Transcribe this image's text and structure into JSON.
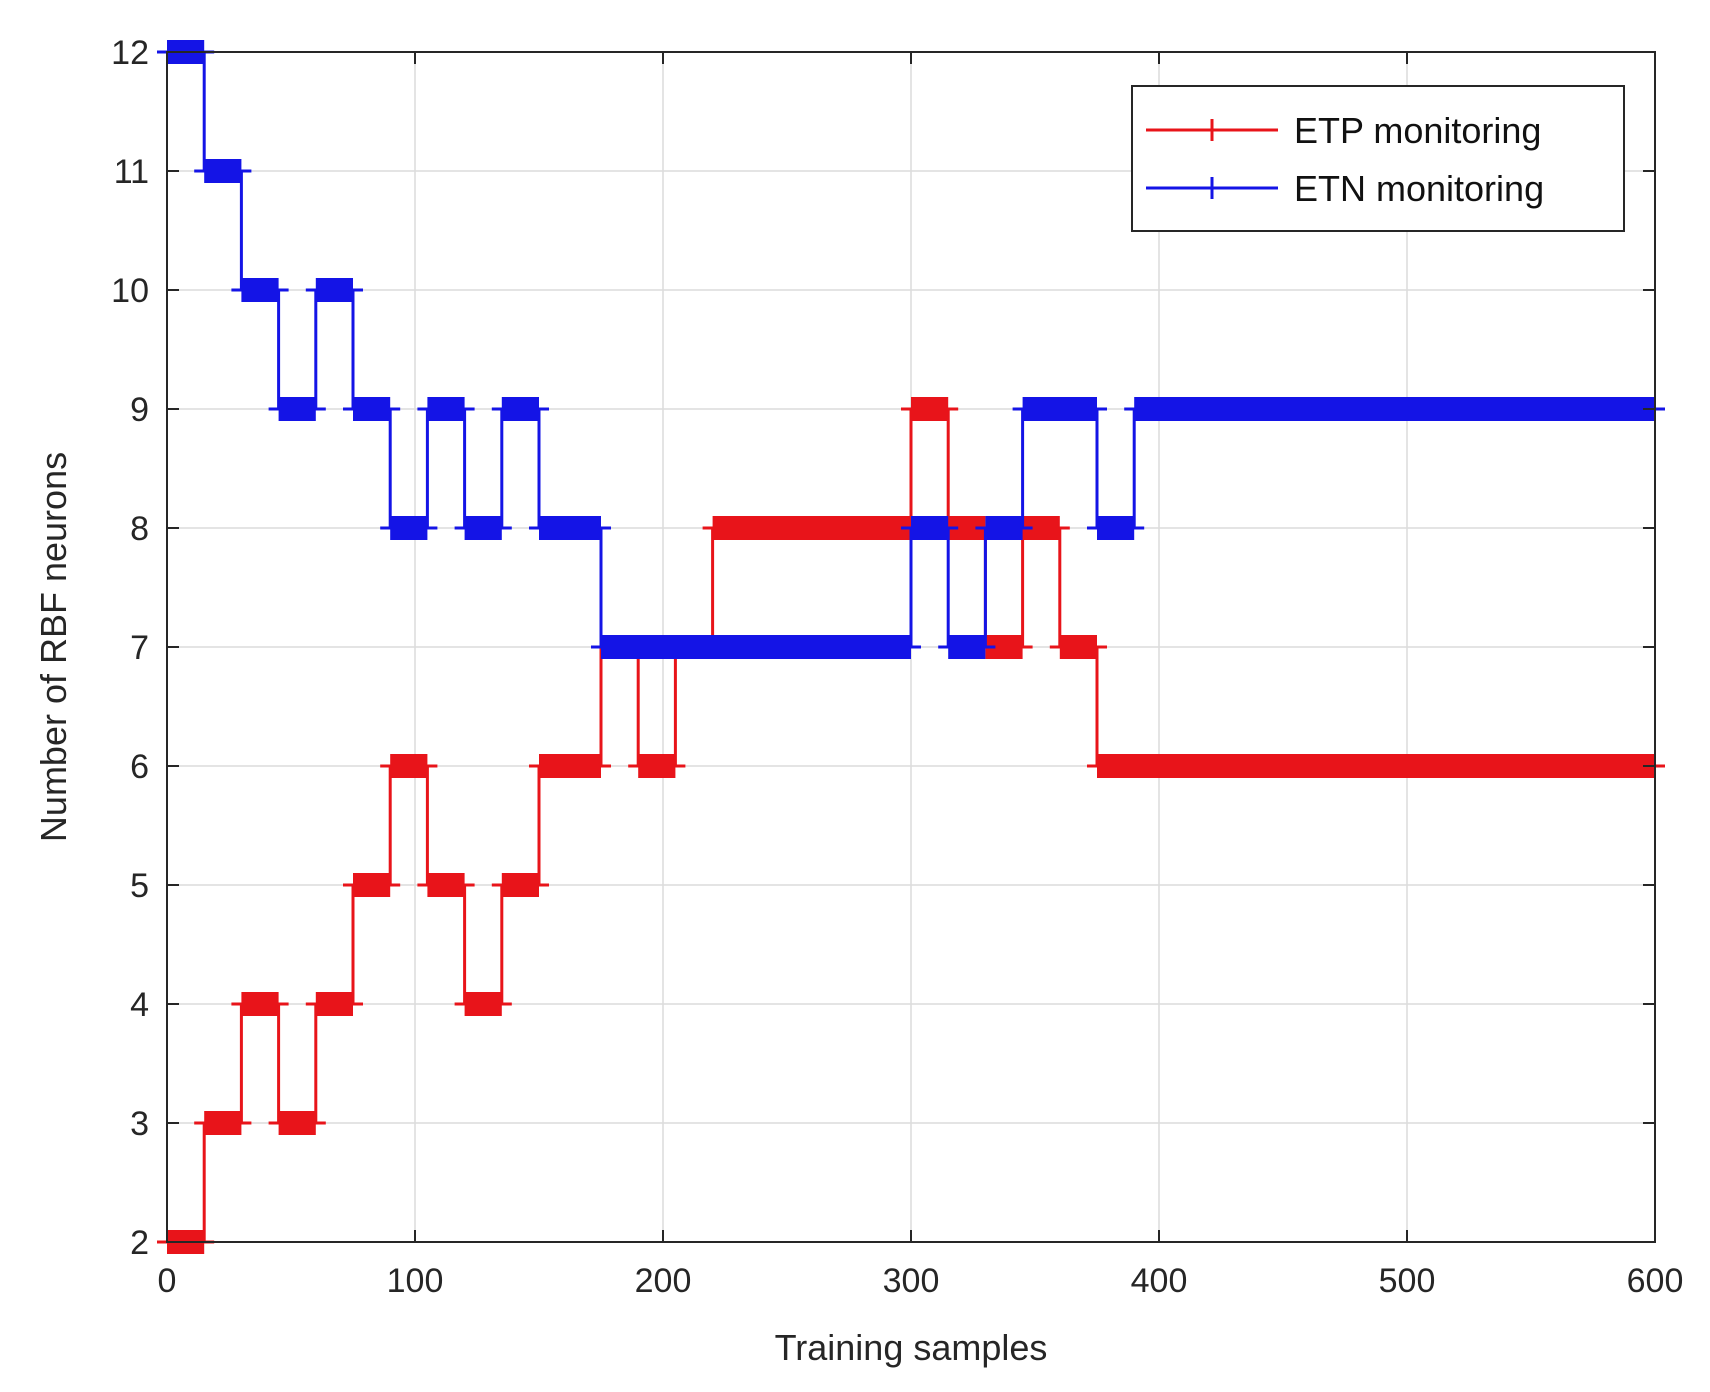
{
  "chart_data": {
    "type": "line",
    "title": "",
    "xlabel": "Training samples",
    "ylabel": "Number of RBF neurons",
    "xlim": [
      0,
      600
    ],
    "ylim": [
      2,
      12
    ],
    "xticks": [
      0,
      100,
      200,
      300,
      400,
      500,
      600
    ],
    "yticks": [
      2,
      3,
      4,
      5,
      6,
      7,
      8,
      9,
      10,
      11,
      12
    ],
    "xtick_labels": [
      "0",
      "100",
      "200",
      "300",
      "400",
      "500",
      "600"
    ],
    "ytick_labels": [
      "2",
      "3",
      "4",
      "5",
      "6",
      "7",
      "8",
      "9",
      "10",
      "11",
      "12"
    ],
    "grid": true,
    "legend_position": "top-right",
    "marker": "plus",
    "series": [
      {
        "name": "ETP monitoring",
        "color": "#e8141a",
        "steps": [
          [
            0,
            2
          ],
          [
            15,
            3
          ],
          [
            30,
            4
          ],
          [
            45,
            3
          ],
          [
            60,
            4
          ],
          [
            75,
            5
          ],
          [
            90,
            6
          ],
          [
            105,
            5
          ],
          [
            120,
            4
          ],
          [
            135,
            5
          ],
          [
            150,
            6
          ],
          [
            175,
            7
          ],
          [
            190,
            6
          ],
          [
            205,
            7
          ],
          [
            220,
            8
          ],
          [
            300,
            9
          ],
          [
            315,
            8
          ],
          [
            330,
            7
          ],
          [
            345,
            8
          ],
          [
            360,
            7
          ],
          [
            375,
            6
          ],
          [
            600,
            6
          ]
        ]
      },
      {
        "name": "ETN monitoring",
        "color": "#1414e6",
        "steps": [
          [
            0,
            12
          ],
          [
            15,
            11
          ],
          [
            30,
            10
          ],
          [
            45,
            9
          ],
          [
            60,
            10
          ],
          [
            75,
            9
          ],
          [
            90,
            8
          ],
          [
            105,
            9
          ],
          [
            120,
            8
          ],
          [
            135,
            9
          ],
          [
            150,
            8
          ],
          [
            175,
            7
          ],
          [
            300,
            8
          ],
          [
            315,
            7
          ],
          [
            330,
            8
          ],
          [
            345,
            9
          ],
          [
            375,
            8
          ],
          [
            390,
            9
          ],
          [
            600,
            9
          ]
        ]
      }
    ]
  }
}
